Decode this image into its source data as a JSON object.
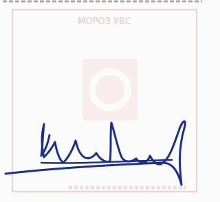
{
  "stamp": {
    "top_text": "МОРОЗ УВС"
  }
}
